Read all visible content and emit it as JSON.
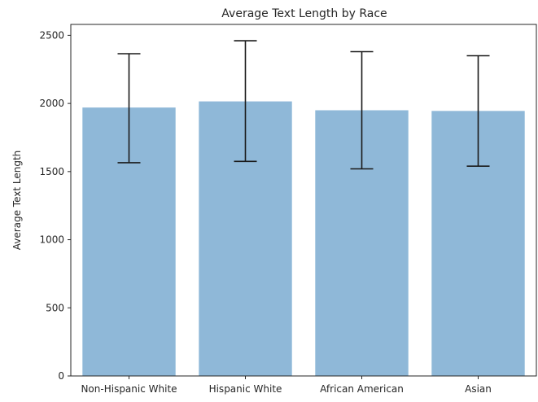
{
  "chart_data": {
    "type": "bar",
    "title": "Average Text Length by Race",
    "xlabel": "",
    "ylabel": "Average Text Length",
    "categories": [
      "Non-Hispanic White",
      "Hispanic White",
      "African American",
      "Asian"
    ],
    "values": [
      1970,
      2015,
      1950,
      1945
    ],
    "error_low": [
      1565,
      1575,
      1520,
      1540
    ],
    "error_high": [
      2365,
      2460,
      2380,
      2350
    ],
    "ylim": [
      0,
      2580
    ],
    "yticks": [
      0,
      500,
      1000,
      1500,
      2000,
      2500
    ],
    "grid": false,
    "legend": "none",
    "colors": {
      "bar": "#8fb8d8",
      "error_bar": "#1a1a1a",
      "axis": "#262626"
    }
  }
}
